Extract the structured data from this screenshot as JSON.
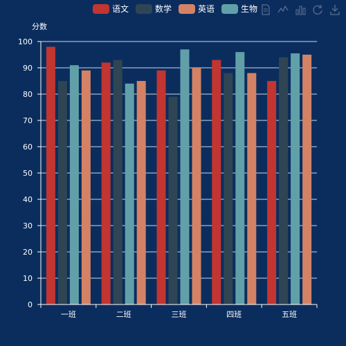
{
  "chart_data": {
    "type": "bar",
    "categories": [
      "一班",
      "二班",
      "三班",
      "四班",
      "五班"
    ],
    "series": [
      {
        "name": "语文",
        "color": "#c23531",
        "values": [
          98,
          92,
          89,
          93,
          85
        ]
      },
      {
        "name": "数学",
        "color": "#2f4554",
        "values": [
          85,
          93,
          79,
          88,
          94
        ]
      },
      {
        "name": "生物",
        "color": "#61a0a8",
        "values": [
          91,
          84,
          97,
          96,
          95.5
        ]
      },
      {
        "name": "英语",
        "color": "#d48265",
        "values": [
          89,
          85,
          90,
          88,
          95
        ]
      }
    ],
    "legend": [
      "语文",
      "数学",
      "英语",
      "生物"
    ],
    "ylabel": "分数",
    "xlabel": "",
    "ylim": [
      0,
      100
    ],
    "yticks": [
      0,
      10,
      20,
      30,
      40,
      50,
      60,
      70,
      80,
      90,
      100
    ],
    "grid": true,
    "legend_position": "top-center"
  },
  "toolbox": [
    "data-view-icon",
    "line-chart-icon",
    "bar-chart-icon",
    "restore-icon",
    "save-image-icon"
  ]
}
